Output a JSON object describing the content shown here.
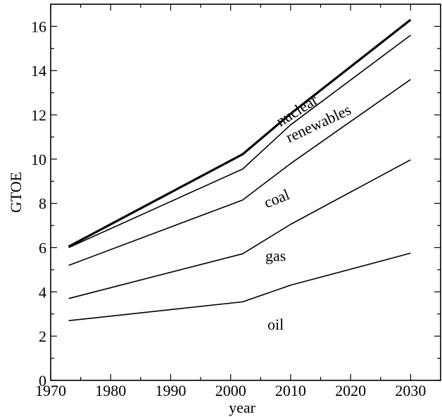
{
  "chart_data": {
    "type": "area",
    "xlabel": "year",
    "ylabel": "GTOE",
    "xlim": [
      1970,
      2035
    ],
    "ylim": [
      0,
      17
    ],
    "x_ticks": [
      1970,
      1980,
      1990,
      2000,
      2010,
      2020,
      2030
    ],
    "y_ticks": [
      0,
      2,
      4,
      6,
      8,
      10,
      12,
      14,
      16
    ],
    "x": [
      1973,
      2002,
      2010,
      2030
    ],
    "stack_boundaries": [
      {
        "values": [
          2.7,
          3.55,
          4.3,
          5.75
        ]
      },
      {
        "values": [
          3.7,
          5.72,
          7.05,
          9.97
        ]
      },
      {
        "values": [
          5.2,
          8.15,
          9.8,
          13.6
        ]
      },
      {
        "values": [
          6.0,
          9.55,
          11.55,
          15.6
        ]
      },
      {
        "values": [
          6.05,
          10.22,
          12.05,
          16.3
        ]
      }
    ],
    "annotations": [
      {
        "text": "oil",
        "x": 2007.5,
        "y": 2.3,
        "rotate": 0
      },
      {
        "text": "gas",
        "x": 2007.5,
        "y": 5.4,
        "rotate": 0
      },
      {
        "text": "coal",
        "x": 2008.0,
        "y": 8.0,
        "rotate": -22
      },
      {
        "text": "renewables",
        "x": 2015.0,
        "y": 11.4,
        "rotate": -25
      },
      {
        "text": "nuclear",
        "x": 2011.5,
        "y": 12.0,
        "rotate": -32
      }
    ],
    "grid": false,
    "legend": "none"
  }
}
